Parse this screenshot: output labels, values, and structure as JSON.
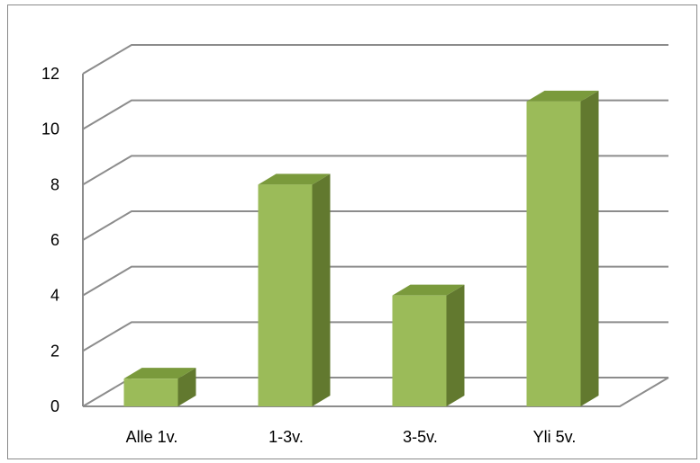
{
  "chart_data": {
    "type": "bar",
    "style": "3d-column",
    "categories": [
      "Alle 1v.",
      "1-3v.",
      "3-5v.",
      "Yli 5v."
    ],
    "values": [
      1,
      8,
      4,
      11
    ],
    "ylim": [
      0,
      12
    ],
    "yticks": [
      "0",
      "2",
      "4",
      "6",
      "8",
      "10",
      "12"
    ],
    "grid": true,
    "legend": "none",
    "colors": {
      "bar_front": "#9bbb59",
      "bar_top": "#7a9a3c",
      "bar_side": "#62792f",
      "gridline": "#8c8c8c"
    }
  }
}
